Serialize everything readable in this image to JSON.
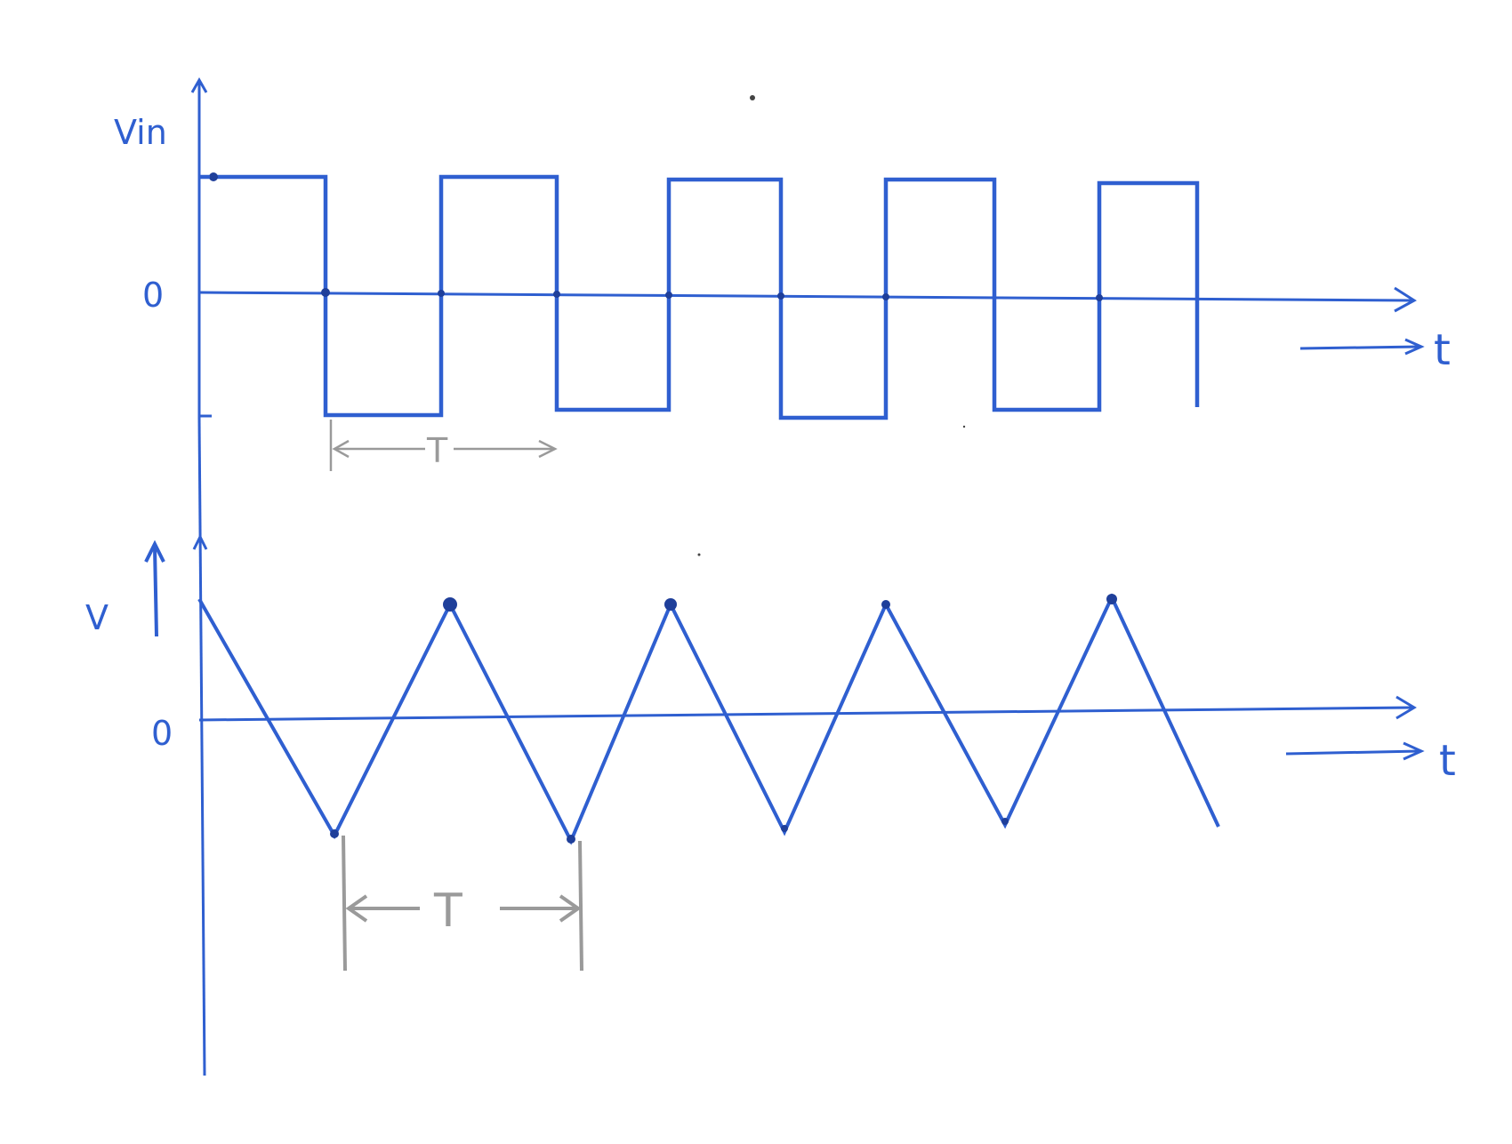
{
  "colors": {
    "ink_blue": "#2f5fd0",
    "ink_dark": "#1f3f9a",
    "pencil_gray": "#9a9a9a",
    "paper": "#ffffff"
  },
  "top_graph": {
    "y_label": "Vin",
    "zero_label": "0",
    "t_label": "t",
    "period_label": "T"
  },
  "bottom_graph": {
    "y_label": "V",
    "zero_label": "0",
    "t_label": "t",
    "period_label": "T"
  },
  "waveforms": {
    "input": "square",
    "output": "triangle"
  }
}
